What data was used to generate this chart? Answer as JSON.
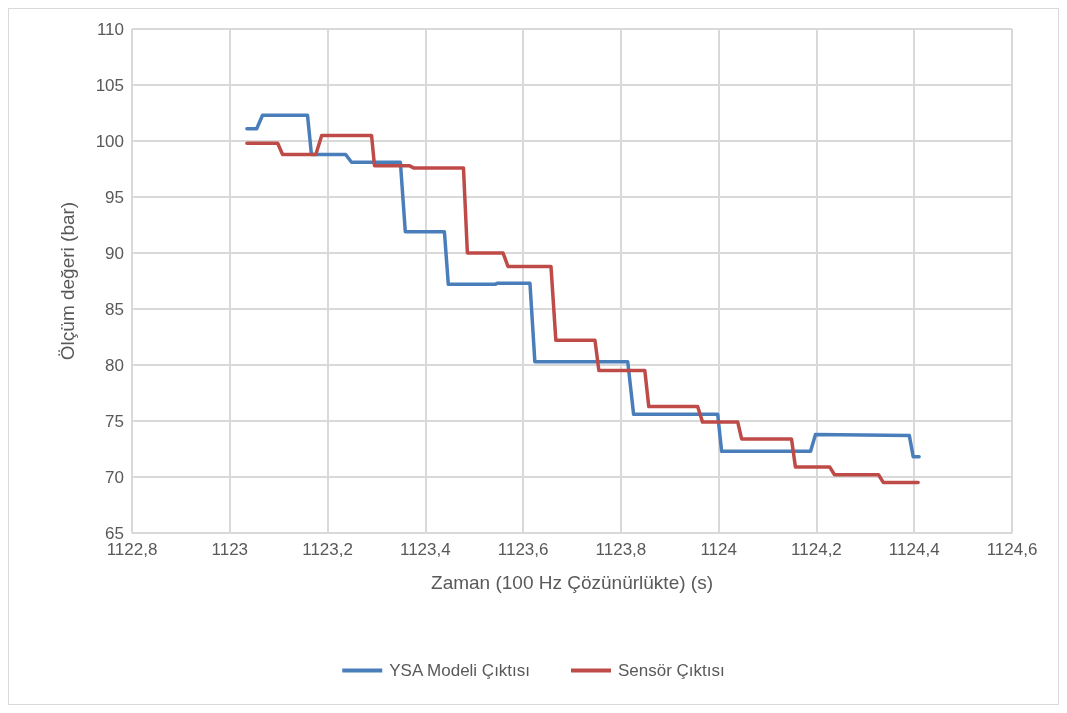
{
  "chart_data": {
    "type": "line",
    "xlabel": "Zaman (100 Hz Çözünürlükte) (s)",
    "ylabel": "Ölçüm değeri (bar)",
    "xlim": [
      1122.8,
      1124.6
    ],
    "xticks": [
      {
        "value": 1122.8,
        "label": "1122,8"
      },
      {
        "value": 1123,
        "label": "1123"
      },
      {
        "value": 1123.2,
        "label": "1123,2"
      },
      {
        "value": 1123.4,
        "label": "1123,4"
      },
      {
        "value": 1123.6,
        "label": "1123,6"
      },
      {
        "value": 1123.8,
        "label": "1123,8"
      },
      {
        "value": 1124,
        "label": "1124"
      },
      {
        "value": 1124.2,
        "label": "1124,2"
      },
      {
        "value": 1124.4,
        "label": "1124,4"
      },
      {
        "value": 1124.6,
        "label": "1124,6"
      }
    ],
    "ylim": [
      65,
      110
    ],
    "yticks": [
      65,
      70,
      75,
      80,
      85,
      90,
      95,
      100,
      105,
      110
    ],
    "grid": true,
    "legend": "bottom",
    "marker": "none",
    "line_style": "solid",
    "series": [
      {
        "name": "YSA Modeli Çıktısı",
        "color": "#4a7ebb",
        "x": [
          1123.035,
          1123.055,
          1123.067,
          1123.159,
          1123.167,
          1123.237,
          1123.249,
          1123.349,
          1123.359,
          1123.439,
          1123.447,
          1123.543,
          1123.547,
          1123.614,
          1123.624,
          1123.814,
          1123.826,
          1123.998,
          1124.006,
          1124.188,
          1124.198,
          1124.39,
          1124.398,
          1124.41
        ],
        "values": [
          101.1,
          101.1,
          102.3,
          102.3,
          98.8,
          98.8,
          98.1,
          98.1,
          91.9,
          91.9,
          87.2,
          87.2,
          87.3,
          87.3,
          80.3,
          80.3,
          75.6,
          75.6,
          72.3,
          72.3,
          73.8,
          73.7,
          71.8,
          71.8
        ]
      },
      {
        "name": "Sensör Çıktısı",
        "color": "#be4b48",
        "x": [
          1123.035,
          1123.098,
          1123.108,
          1123.176,
          1123.188,
          1123.29,
          1123.296,
          1123.367,
          1123.376,
          1123.478,
          1123.486,
          1123.559,
          1123.569,
          1123.657,
          1123.667,
          1123.747,
          1123.755,
          1123.849,
          1123.857,
          1123.957,
          1123.967,
          1124.039,
          1124.047,
          1124.149,
          1124.157,
          1124.227,
          1124.237,
          1124.327,
          1124.337,
          1124.408
        ],
        "values": [
          99.8,
          99.8,
          98.8,
          98.8,
          100.5,
          100.5,
          97.8,
          97.8,
          97.6,
          97.6,
          90.0,
          90.0,
          88.8,
          88.8,
          82.2,
          82.2,
          79.5,
          79.5,
          76.3,
          76.3,
          74.9,
          74.9,
          73.4,
          73.4,
          70.9,
          70.9,
          70.2,
          70.2,
          69.5,
          69.5
        ]
      }
    ]
  }
}
